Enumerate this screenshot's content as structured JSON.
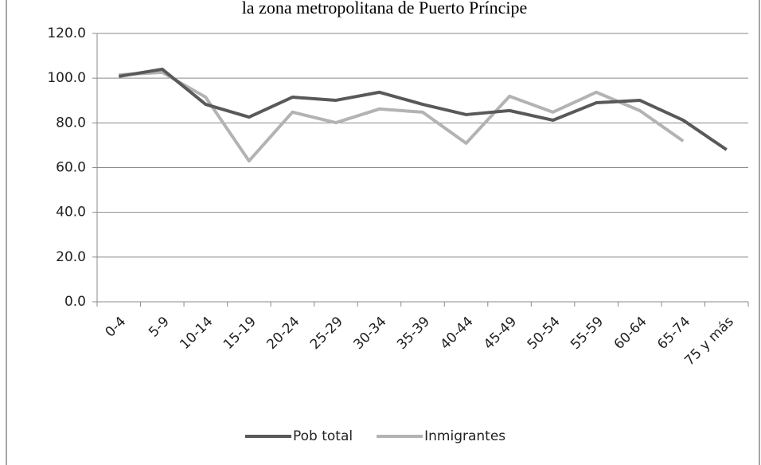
{
  "chart_data": {
    "type": "line",
    "title": "la zona metropolitana de Puerto Príncipe",
    "categories": [
      "0-4",
      "5-9",
      "10-14",
      "15-19",
      "20-24",
      "25-29",
      "30-34",
      "35-39",
      "40-44",
      "45-49",
      "50-54",
      "55-59",
      "60-64",
      "65-74",
      "75 y más"
    ],
    "series": [
      {
        "name": "Pob total",
        "color": "#595959",
        "values": [
          100.8,
          104,
          88.3,
          82.6,
          91.5,
          90.1,
          93.7,
          88.3,
          83.7,
          85.5,
          81.2,
          89,
          90.1,
          81.2,
          68
        ]
      },
      {
        "name": "Inmigrantes",
        "color": "#b3b3b3",
        "values": [
          101.5,
          102.6,
          91.5,
          63,
          84.8,
          80.1,
          86.2,
          84.8,
          70.9,
          91.9,
          84.8,
          93.7,
          85.5,
          71.9,
          null
        ]
      }
    ],
    "ylim": [
      0,
      120
    ],
    "yticks": [
      {
        "value": 0,
        "label": "0.0"
      },
      {
        "value": 20,
        "label": "20.0"
      },
      {
        "value": 40,
        "label": "40.0"
      },
      {
        "value": 60,
        "label": "60.0"
      },
      {
        "value": 80,
        "label": "80.0"
      },
      {
        "value": 100,
        "label": "100.0"
      },
      {
        "value": 120,
        "label": "120.0"
      }
    ],
    "grid": true,
    "legend": "bottom"
  }
}
